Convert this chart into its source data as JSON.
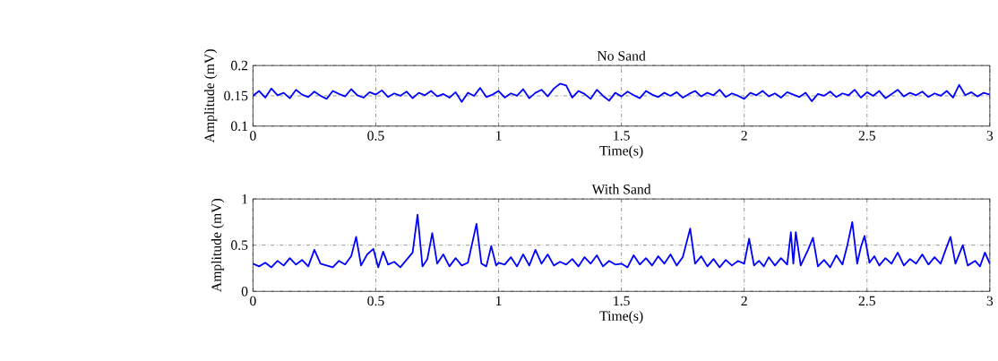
{
  "chart_data": [
    {
      "type": "line",
      "title": "No Sand",
      "xlabel": "Time(s)",
      "ylabel": "Amplitude (mV)",
      "xlim": [
        0,
        3
      ],
      "ylim": [
        0.1,
        0.2
      ],
      "xticks": [
        0,
        0.5,
        1,
        1.5,
        2,
        2.5,
        3
      ],
      "yticks": [
        0.1,
        0.15,
        0.2
      ],
      "grid": true,
      "series": [
        {
          "color": "#0000ff",
          "x": [
            0,
            0.025,
            0.05,
            0.075,
            0.1,
            0.125,
            0.15,
            0.175,
            0.2,
            0.225,
            0.25,
            0.275,
            0.3,
            0.325,
            0.35,
            0.375,
            0.4,
            0.425,
            0.45,
            0.475,
            0.5,
            0.525,
            0.55,
            0.575,
            0.6,
            0.625,
            0.65,
            0.675,
            0.7,
            0.725,
            0.75,
            0.775,
            0.8,
            0.825,
            0.85,
            0.875,
            0.9,
            0.925,
            0.95,
            0.975,
            1,
            1.025,
            1.05,
            1.075,
            1.1,
            1.125,
            1.15,
            1.175,
            1.2,
            1.225,
            1.25,
            1.275,
            1.3,
            1.325,
            1.35,
            1.375,
            1.4,
            1.425,
            1.45,
            1.475,
            1.5,
            1.525,
            1.55,
            1.575,
            1.6,
            1.625,
            1.65,
            1.675,
            1.7,
            1.725,
            1.75,
            1.775,
            1.8,
            1.825,
            1.85,
            1.875,
            1.9,
            1.925,
            1.95,
            1.975,
            2,
            2.025,
            2.05,
            2.075,
            2.1,
            2.125,
            2.15,
            2.175,
            2.2,
            2.225,
            2.25,
            2.275,
            2.3,
            2.325,
            2.35,
            2.375,
            2.4,
            2.425,
            2.45,
            2.475,
            2.5,
            2.525,
            2.55,
            2.575,
            2.6,
            2.625,
            2.65,
            2.675,
            2.7,
            2.725,
            2.75,
            2.775,
            2.8,
            2.825,
            2.85,
            2.875,
            2.9,
            2.925,
            2.95,
            2.975,
            3
          ],
          "values": [
            0.15,
            0.158,
            0.147,
            0.162,
            0.151,
            0.155,
            0.146,
            0.16,
            0.152,
            0.148,
            0.157,
            0.15,
            0.145,
            0.158,
            0.153,
            0.149,
            0.161,
            0.151,
            0.147,
            0.156,
            0.152,
            0.159,
            0.148,
            0.154,
            0.15,
            0.157,
            0.146,
            0.155,
            0.151,
            0.158,
            0.149,
            0.153,
            0.147,
            0.156,
            0.14,
            0.155,
            0.15,
            0.163,
            0.148,
            0.152,
            0.158,
            0.147,
            0.154,
            0.15,
            0.161,
            0.146,
            0.155,
            0.16,
            0.149,
            0.162,
            0.17,
            0.167,
            0.147,
            0.158,
            0.153,
            0.145,
            0.16,
            0.15,
            0.142,
            0.155,
            0.149,
            0.157,
            0.151,
            0.146,
            0.158,
            0.152,
            0.148,
            0.155,
            0.15,
            0.156,
            0.147,
            0.153,
            0.158,
            0.149,
            0.155,
            0.151,
            0.16,
            0.148,
            0.154,
            0.15,
            0.145,
            0.155,
            0.151,
            0.158,
            0.149,
            0.154,
            0.147,
            0.156,
            0.152,
            0.148,
            0.155,
            0.141,
            0.153,
            0.15,
            0.157,
            0.148,
            0.154,
            0.151,
            0.16,
            0.147,
            0.156,
            0.15,
            0.158,
            0.146,
            0.153,
            0.16,
            0.149,
            0.155,
            0.151,
            0.157,
            0.148,
            0.154,
            0.15,
            0.158,
            0.147,
            0.168,
            0.151,
            0.156,
            0.149,
            0.155,
            0.152
          ]
        }
      ]
    },
    {
      "type": "line",
      "title": "With Sand",
      "xlabel": "Time(s)",
      "ylabel": "Amplitude (mV)",
      "xlim": [
        0,
        3
      ],
      "ylim": [
        0,
        1
      ],
      "xticks": [
        0,
        0.5,
        1,
        1.5,
        2,
        2.5,
        3
      ],
      "yticks": [
        0,
        0.5,
        1
      ],
      "grid": true,
      "series": [
        {
          "color": "#0000ff",
          "x": [
            0,
            0.025,
            0.05,
            0.075,
            0.1,
            0.125,
            0.15,
            0.175,
            0.2,
            0.225,
            0.25,
            0.275,
            0.3,
            0.325,
            0.35,
            0.375,
            0.4,
            0.42,
            0.44,
            0.465,
            0.49,
            0.51,
            0.53,
            0.55,
            0.575,
            0.6,
            0.625,
            0.65,
            0.67,
            0.69,
            0.71,
            0.73,
            0.75,
            0.775,
            0.8,
            0.825,
            0.85,
            0.875,
            0.89,
            0.91,
            0.93,
            0.95,
            0.97,
            0.99,
            1.0,
            1.025,
            1.05,
            1.075,
            1.1,
            1.125,
            1.15,
            1.175,
            1.2,
            1.225,
            1.25,
            1.275,
            1.3,
            1.325,
            1.35,
            1.375,
            1.4,
            1.425,
            1.45,
            1.475,
            1.5,
            1.525,
            1.55,
            1.575,
            1.6,
            1.625,
            1.65,
            1.675,
            1.7,
            1.725,
            1.75,
            1.78,
            1.8,
            1.825,
            1.85,
            1.875,
            1.9,
            1.925,
            1.95,
            1.975,
            2.0,
            2.02,
            2.04,
            2.06,
            2.08,
            2.1,
            2.125,
            2.15,
            2.175,
            2.19,
            2.2,
            2.21,
            2.23,
            2.26,
            2.28,
            2.3,
            2.325,
            2.35,
            2.375,
            2.4,
            2.42,
            2.44,
            2.46,
            2.475,
            2.49,
            2.51,
            2.53,
            2.55,
            2.575,
            2.6,
            2.625,
            2.65,
            2.675,
            2.7,
            2.725,
            2.75,
            2.775,
            2.8,
            2.82,
            2.84,
            2.86,
            2.89,
            2.91,
            2.94,
            2.96,
            2.98,
            3.0
          ],
          "values": [
            0.3,
            0.27,
            0.31,
            0.26,
            0.33,
            0.28,
            0.36,
            0.29,
            0.34,
            0.27,
            0.45,
            0.3,
            0.28,
            0.26,
            0.33,
            0.29,
            0.38,
            0.59,
            0.28,
            0.4,
            0.46,
            0.26,
            0.43,
            0.29,
            0.32,
            0.26,
            0.34,
            0.42,
            0.83,
            0.27,
            0.35,
            0.63,
            0.3,
            0.4,
            0.27,
            0.36,
            0.28,
            0.31,
            0.49,
            0.73,
            0.3,
            0.27,
            0.49,
            0.28,
            0.31,
            0.29,
            0.37,
            0.27,
            0.4,
            0.28,
            0.45,
            0.3,
            0.4,
            0.28,
            0.32,
            0.29,
            0.35,
            0.27,
            0.37,
            0.3,
            0.39,
            0.27,
            0.33,
            0.29,
            0.3,
            0.26,
            0.39,
            0.29,
            0.36,
            0.28,
            0.38,
            0.3,
            0.4,
            0.28,
            0.37,
            0.68,
            0.3,
            0.38,
            0.27,
            0.35,
            0.26,
            0.34,
            0.28,
            0.33,
            0.3,
            0.57,
            0.28,
            0.33,
            0.27,
            0.37,
            0.28,
            0.36,
            0.29,
            0.64,
            0.3,
            0.64,
            0.28,
            0.45,
            0.58,
            0.27,
            0.34,
            0.26,
            0.39,
            0.29,
            0.5,
            0.75,
            0.3,
            0.48,
            0.6,
            0.31,
            0.38,
            0.28,
            0.36,
            0.3,
            0.42,
            0.28,
            0.35,
            0.3,
            0.4,
            0.29,
            0.37,
            0.3,
            0.45,
            0.59,
            0.3,
            0.5,
            0.28,
            0.33,
            0.27,
            0.42,
            0.3
          ]
        }
      ]
    }
  ]
}
